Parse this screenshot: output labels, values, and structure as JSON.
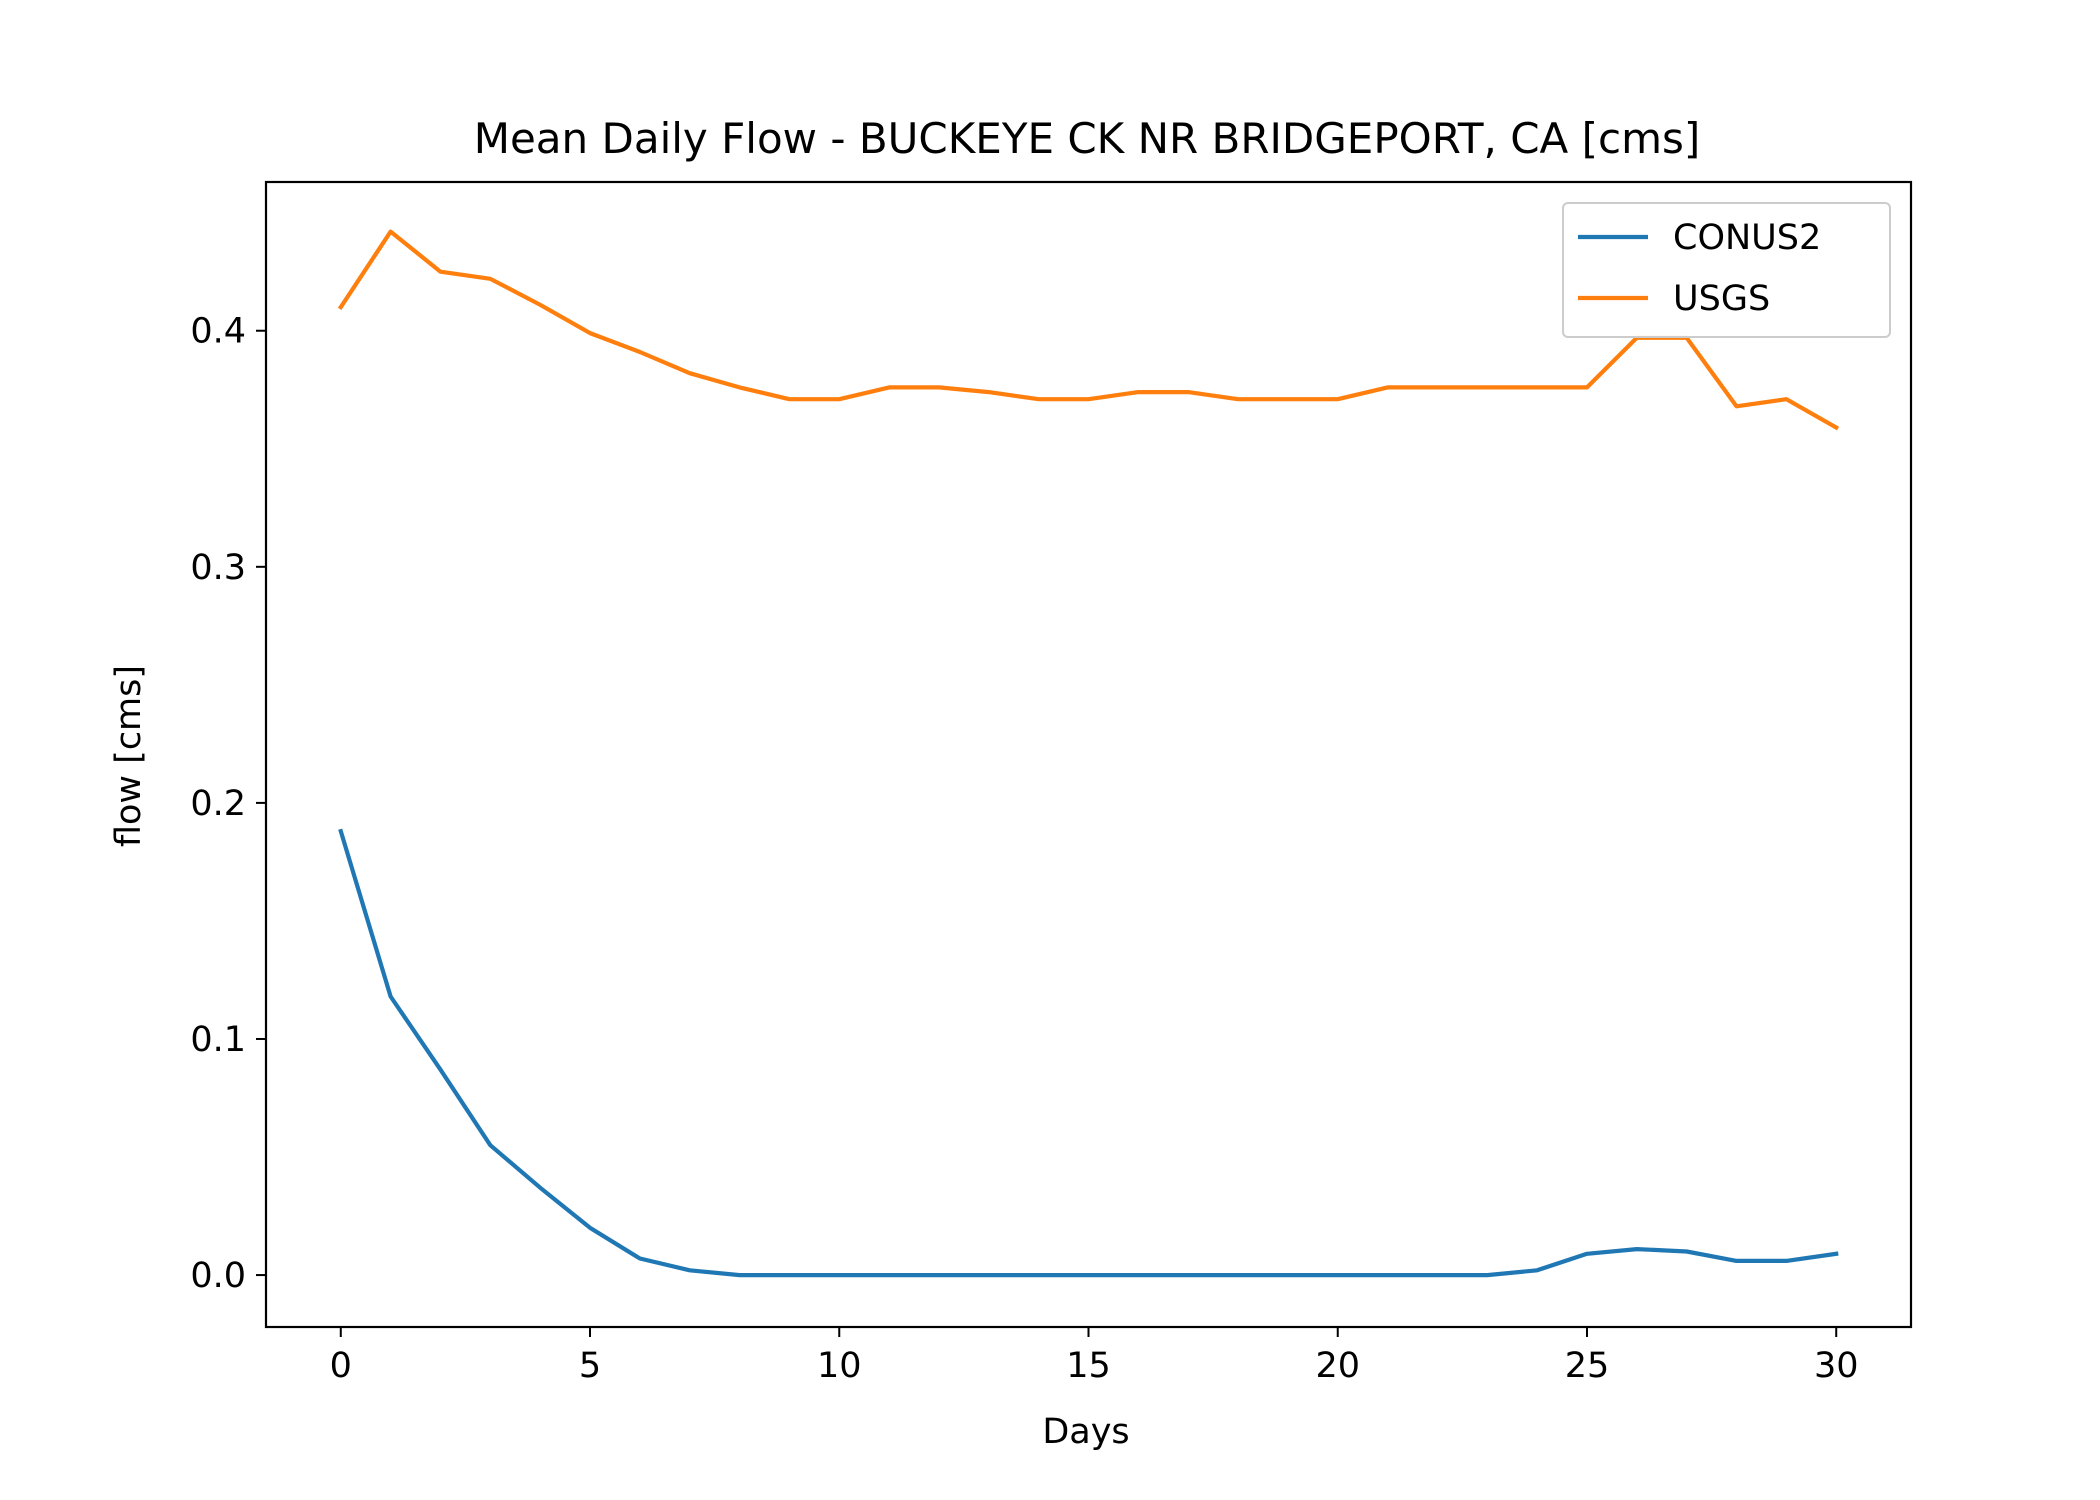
{
  "chart_data": {
    "type": "line",
    "title": "Mean Daily Flow - BUCKEYE CK NR BRIDGEPORT, CA [cms]",
    "xlabel": "Days",
    "ylabel": "flow [cms]",
    "xlim": [
      -1.5,
      31.5
    ],
    "ylim": [
      -0.022,
      0.463
    ],
    "x_ticks": [
      0,
      5,
      10,
      15,
      20,
      25,
      30
    ],
    "y_ticks": [
      0.0,
      0.1,
      0.2,
      0.3,
      0.4
    ],
    "x_tick_labels": [
      "0",
      "5",
      "10",
      "15",
      "20",
      "25",
      "30"
    ],
    "y_tick_labels": [
      "0.0",
      "0.1",
      "0.2",
      "0.3",
      "0.4"
    ],
    "grid": false,
    "legend_position": "upper right",
    "x": [
      0,
      1,
      2,
      3,
      4,
      5,
      6,
      7,
      8,
      9,
      10,
      11,
      12,
      13,
      14,
      15,
      16,
      17,
      18,
      19,
      20,
      21,
      22,
      23,
      24,
      25,
      26,
      27,
      28,
      29,
      30
    ],
    "series": [
      {
        "name": "CONUS2",
        "color": "#1f77b4",
        "values": [
          0.188,
          0.118,
          0.087,
          0.055,
          0.037,
          0.02,
          0.007,
          0.002,
          0.0,
          0.0,
          0.0,
          0.0,
          0.0,
          0.0,
          0.0,
          0.0,
          0.0,
          0.0,
          0.0,
          0.0,
          0.0,
          0.0,
          0.0,
          0.0,
          0.002,
          0.009,
          0.011,
          0.01,
          0.006,
          0.006,
          0.009
        ]
      },
      {
        "name": "USGS",
        "color": "#ff7f0e",
        "values": [
          0.41,
          0.442,
          0.425,
          0.422,
          0.411,
          0.399,
          0.391,
          0.382,
          0.376,
          0.371,
          0.371,
          0.376,
          0.376,
          0.374,
          0.371,
          0.371,
          0.374,
          0.374,
          0.371,
          0.371,
          0.371,
          0.376,
          0.376,
          0.376,
          0.376,
          0.376,
          0.397,
          0.397,
          0.368,
          0.371,
          0.359
        ]
      }
    ]
  }
}
